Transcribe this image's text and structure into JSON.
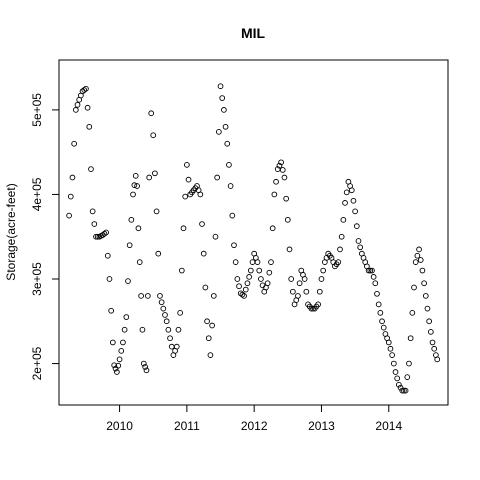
{
  "chart_data": {
    "type": "scatter",
    "title": "MIL",
    "xlabel": "",
    "ylabel": "Storage(acre-feet)",
    "x_ticks": [
      {
        "value": 2010,
        "label": "2010"
      },
      {
        "value": 2011,
        "label": "2011"
      },
      {
        "value": 2012,
        "label": "2012"
      },
      {
        "value": 2013,
        "label": "2013"
      },
      {
        "value": 2014,
        "label": "2014"
      }
    ],
    "y_ticks": [
      {
        "value": 200000,
        "label": "2e+05"
      },
      {
        "value": 300000,
        "label": "3e+05"
      },
      {
        "value": 400000,
        "label": "4e+05"
      },
      {
        "value": 500000,
        "label": "5e+05"
      }
    ],
    "xlim": [
      2009.1,
      2014.88
    ],
    "ylim": [
      151000,
      559000
    ],
    "grid": false,
    "marker": "open-circle",
    "series": [
      {
        "x": [
          2009.25,
          2009.3,
          2009.35,
          2009.4,
          2009.45,
          2009.5,
          2009.55,
          2009.6,
          2009.65,
          2009.7,
          2009.75,
          2009.8,
          2009.85,
          2009.9,
          2009.92,
          2009.96,
          2010.0,
          2010.05,
          2010.1,
          2010.15,
          2010.2,
          2010.24,
          2010.26,
          2010.28,
          2010.32,
          2010.36,
          2010.4,
          2010.42,
          2010.44,
          2010.47,
          2010.5,
          2010.55,
          2010.6,
          2010.7,
          2010.8,
          2010.85,
          2010.9,
          2010.95,
          2011.0,
          2011.05,
          2011.1,
          2011.15,
          2011.2,
          2011.25,
          2011.3,
          2011.35,
          2011.4,
          2011.45,
          2011.5,
          2011.55,
          2011.6,
          2011.65,
          2011.7,
          2011.75,
          2011.8,
          2011.85,
          2011.9,
          2011.95,
          2012.0,
          2012.05,
          2012.1,
          2012.15,
          2012.2,
          2012.25,
          2012.3,
          2012.35,
          2012.4,
          2012.45,
          2012.5,
          2012.55,
          2012.6,
          2012.65,
          2012.7,
          2012.75,
          2012.8,
          2012.85,
          2012.9,
          2012.95,
          2013.0,
          2013.05,
          2013.1,
          2013.15,
          2013.2,
          2013.25,
          2013.3,
          2013.35,
          2013.4,
          2013.45,
          2013.5,
          2013.55,
          2013.6,
          2013.65,
          2013.7,
          2013.75,
          2013.8,
          2013.85,
          2013.9,
          2013.95,
          2014.0,
          2014.05,
          2014.1,
          2014.15,
          2014.2,
          2014.25,
          2014.3,
          2014.35,
          2014.4,
          2014.45,
          2014.5,
          2014.55,
          2014.6,
          2014.65,
          2014.7,
          2014.72
        ],
        "y": [
          375000,
          420000,
          500000,
          512000,
          522000,
          525000,
          480000,
          380000,
          350000,
          350000,
          352000,
          355000,
          300000,
          225000,
          198000,
          190000,
          205000,
          225000,
          255000,
          340000,
          400000,
          422000,
          410000,
          360000,
          280000,
          200000,
          192000,
          280000,
          420000,
          496000,
          470000,
          380000,
          280000,
          250000,
          210000,
          220000,
          260000,
          360000,
          435000,
          400000,
          405000,
          410000,
          400000,
          330000,
          250000,
          210000,
          280000,
          420000,
          528000,
          500000,
          460000,
          410000,
          340000,
          300000,
          283000,
          280000,
          295000,
          310000,
          330000,
          320000,
          300000,
          285000,
          295000,
          320000,
          400000,
          430000,
          438000,
          420000,
          370000,
          300000,
          270000,
          280000,
          310000,
          300000,
          270000,
          265000,
          265000,
          270000,
          300000,
          320000,
          330000,
          325000,
          315000,
          320000,
          350000,
          390000,
          415000,
          405000,
          380000,
          345000,
          330000,
          320000,
          310000,
          310000,
          295000,
          270000,
          250000,
          235000,
          225000,
          210000,
          190000,
          175000,
          168000,
          168000,
          200000,
          260000,
          320000,
          335000,
          310000,
          280000,
          250000,
          225000,
          210000,
          205000
        ]
      }
    ]
  }
}
